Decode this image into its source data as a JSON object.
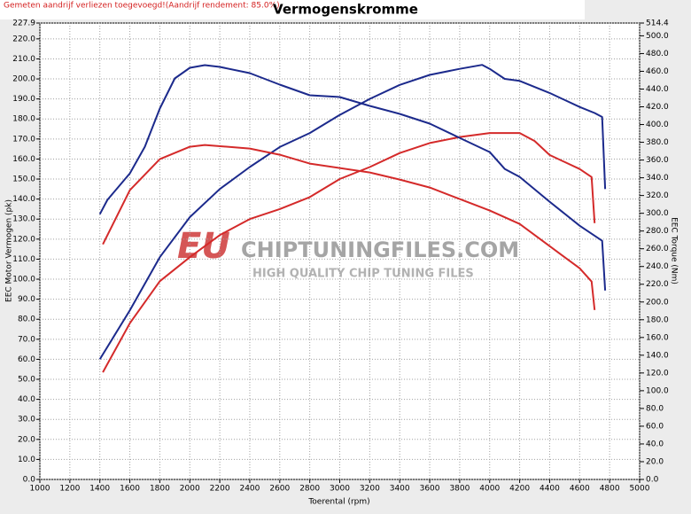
{
  "chart_data": {
    "type": "line",
    "title": "Vermogenskromme",
    "note": "Gemeten aandrijf verliezen toegevoegd!(Aandrijf rendement: 85.0%)",
    "xlabel": "Toerental (rpm)",
    "ylabel": "EEC Motor Vermogen (pk)",
    "y2label": "EEC Torque (Nm)",
    "watermark": [
      "EU",
      "CHIPTUNINGFILES.COM",
      "HIGH QUALITY CHIP TUNING FILES"
    ],
    "grid": true,
    "xlim": [
      1000,
      5000
    ],
    "xticks": [
      1000,
      1200,
      1400,
      1600,
      1800,
      2000,
      2200,
      2400,
      2600,
      2800,
      3000,
      3200,
      3400,
      3600,
      3800,
      4000,
      4200,
      4400,
      4600,
      4800,
      5000
    ],
    "ylim": [
      0,
      227.9
    ],
    "yticks": [
      {
        "value": 0,
        "label": "0.0"
      },
      {
        "value": 10,
        "label": "10.0"
      },
      {
        "value": 20,
        "label": "20.0"
      },
      {
        "value": 30,
        "label": "30.0"
      },
      {
        "value": 40,
        "label": "40.0"
      },
      {
        "value": 50,
        "label": "50.0"
      },
      {
        "value": 60,
        "label": "60.0"
      },
      {
        "value": 70,
        "label": "70.0"
      },
      {
        "value": 80,
        "label": "80.0"
      },
      {
        "value": 90,
        "label": "90.0"
      },
      {
        "value": 100,
        "label": "100.0"
      },
      {
        "value": 110,
        "label": "110.0"
      },
      {
        "value": 120,
        "label": "120.0"
      },
      {
        "value": 130,
        "label": "130.0"
      },
      {
        "value": 140,
        "label": "140.0"
      },
      {
        "value": 150,
        "label": "150.0"
      },
      {
        "value": 160,
        "label": "160.0"
      },
      {
        "value": 170,
        "label": "170.0"
      },
      {
        "value": 180,
        "label": "180.0"
      },
      {
        "value": 190,
        "label": "190.0"
      },
      {
        "value": 200,
        "label": "200.0"
      },
      {
        "value": 210,
        "label": "210.0"
      },
      {
        "value": 220,
        "label": "220.0"
      },
      227.9
    ],
    "y2lim": [
      0,
      514.4
    ],
    "y2ticks": [
      {
        "value": 0,
        "label": "0.0"
      },
      {
        "value": 20,
        "label": "20.0"
      },
      {
        "value": 40,
        "label": "40.0"
      },
      {
        "value": 60,
        "label": "60.0"
      },
      {
        "value": 80,
        "label": "80.0"
      },
      {
        "value": 100,
        "label": "100.0"
      },
      {
        "value": 120,
        "label": "120.0"
      },
      {
        "value": 140,
        "label": "140.0"
      },
      {
        "value": 160,
        "label": "160.0"
      },
      {
        "value": 180,
        "label": "180.0"
      },
      {
        "value": 200,
        "label": "200.0"
      },
      {
        "value": 220,
        "label": "220.0"
      },
      {
        "value": 240,
        "label": "240.0"
      },
      {
        "value": 260,
        "label": "260.0"
      },
      {
        "value": 280,
        "label": "280.0"
      },
      {
        "value": 300,
        "label": "300.0"
      },
      {
        "value": 320,
        "label": "320.0"
      },
      {
        "value": 340,
        "label": "340.0"
      },
      {
        "value": 360,
        "label": "360.0"
      },
      {
        "value": 380,
        "label": "380.0"
      },
      {
        "value": 400,
        "label": "400.0"
      },
      {
        "value": 420,
        "label": "420.0"
      },
      {
        "value": 440,
        "label": "440.0"
      },
      {
        "value": 460,
        "label": "460.0"
      },
      {
        "value": 480,
        "label": "480.0"
      },
      {
        "value": 500,
        "label": "500.0"
      },
      514.4
    ],
    "series": [
      {
        "color": "#1c2a8c",
        "x": [
          1400,
          1600,
          1800,
          2000,
          2200,
          2400,
          2600,
          2800,
          3000,
          3200,
          3400,
          3600,
          3800,
          3950,
          4000,
          4100,
          4200,
          4400,
          4600,
          4700,
          4750,
          4770
        ],
        "values": [
          60,
          84.5,
          111,
          131,
          145,
          156,
          166,
          173,
          182,
          190,
          197,
          202,
          205,
          207,
          205,
          200,
          199,
          193,
          186,
          183,
          181,
          145
        ]
      },
      {
        "color": "#d42a2a",
        "x": [
          1420,
          1600,
          1800,
          2000,
          2200,
          2400,
          2600,
          2800,
          3000,
          3200,
          3400,
          3600,
          3800,
          4000,
          4200,
          4300,
          4400,
          4600,
          4680,
          4700
        ],
        "values": [
          53.5,
          78,
          99,
          111,
          122,
          130,
          135,
          141,
          150,
          156,
          163,
          168,
          171,
          173,
          173,
          169,
          162,
          155,
          151,
          128
        ]
      },
      {
        "color": "#1c2a8c",
        "axis": "y2",
        "x": [
          1400,
          1450,
          1600,
          1700,
          1800,
          1900,
          2000,
          2100,
          2200,
          2400,
          2600,
          2800,
          3000,
          3200,
          3400,
          3600,
          3800,
          4000,
          4100,
          4200,
          4400,
          4600,
          4750,
          4770
        ],
        "values": [
          299,
          315,
          345,
          375,
          418,
          452,
          464,
          467,
          465,
          458,
          445,
          433,
          431,
          421,
          412,
          401,
          385,
          369,
          350,
          341,
          313,
          286,
          269,
          213
        ]
      },
      {
        "color": "#d42a2a",
        "axis": "y2",
        "x": [
          1420,
          1600,
          1800,
          2000,
          2100,
          2400,
          2600,
          2800,
          3200,
          3400,
          3600,
          3800,
          4000,
          4200,
          4400,
          4600,
          4680,
          4700
        ],
        "values": [
          265,
          326,
          361,
          375,
          377,
          373,
          366,
          356,
          346,
          338,
          329,
          316,
          303,
          288,
          263,
          238,
          223,
          191
        ]
      }
    ]
  }
}
